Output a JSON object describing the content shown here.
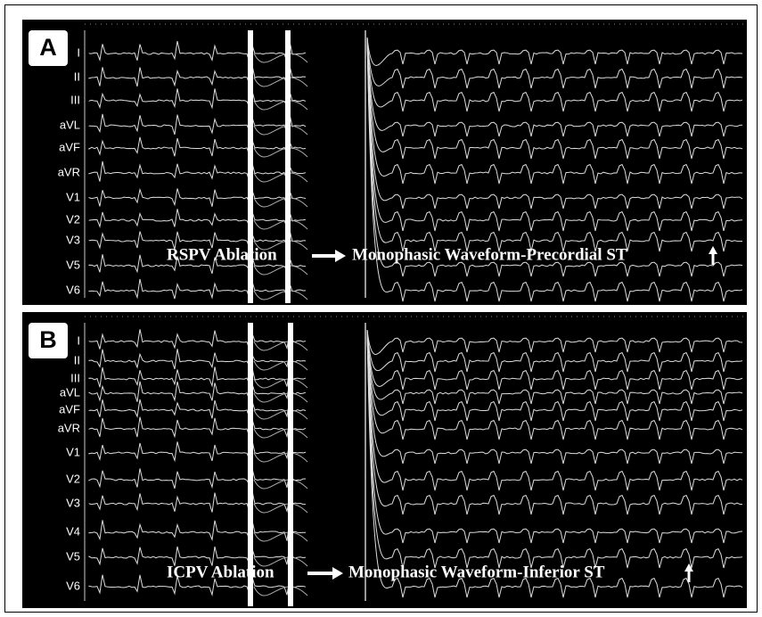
{
  "panels": [
    {
      "label": "A",
      "leads": [
        "I",
        "II",
        "III",
        "aVL",
        "aVF",
        "aVR",
        "V1",
        "V2",
        "V3",
        "V5",
        "V6"
      ],
      "ablation": "RSPV Ablation",
      "result": "Monophasic Waveform-Precordial ST"
    },
    {
      "label": "B",
      "leads": [
        "I",
        "II",
        "III",
        "aVL",
        "aVF",
        "aVR",
        "V1",
        "V2",
        "V3",
        "V4",
        "V5",
        "V6"
      ],
      "ablation": "ICPV Ablation",
      "result": "Monophasic Waveform-Inferior ST"
    }
  ]
}
